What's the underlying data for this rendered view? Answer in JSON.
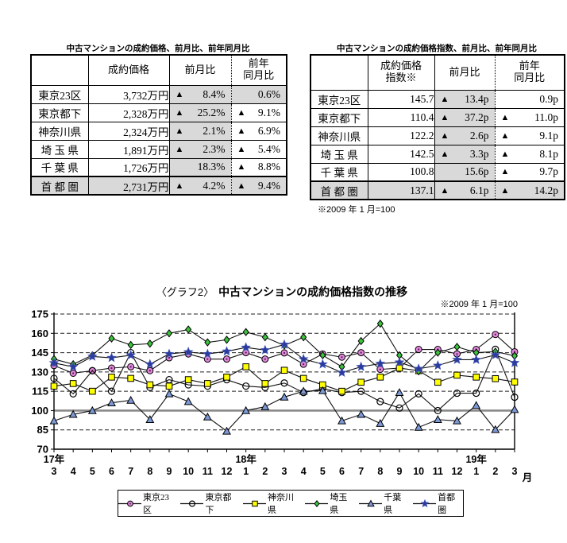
{
  "tables": {
    "price": {
      "title": "中古マンションの成約価格、前月比、前年同月比",
      "headers": [
        "",
        "成約価格",
        "前月比",
        "前年\n同月比"
      ],
      "rows": [
        {
          "label": "東京23区",
          "label_shaded": false,
          "v1": "3,732万円",
          "v1_shaded": false,
          "v1_bold": false,
          "c2": {
            "tri": true,
            "v": "8.4%",
            "shaded": true,
            "bold": true
          },
          "c3": {
            "tri": false,
            "v": "0.6%",
            "shaded": true,
            "bold": true
          }
        },
        {
          "label": "東京都下",
          "label_shaded": false,
          "v1": "2,328万円",
          "v1_shaded": false,
          "v1_bold": false,
          "c2": {
            "tri": true,
            "v": "25.2%",
            "shaded": true,
            "bold": true
          },
          "c3": {
            "tri": true,
            "v": "9.1%",
            "shaded": false,
            "bold": false
          }
        },
        {
          "label": "神奈川県",
          "label_shaded": false,
          "v1": "2,324万円",
          "v1_shaded": false,
          "v1_bold": false,
          "c2": {
            "tri": true,
            "v": "2.1%",
            "shaded": true,
            "bold": true
          },
          "c3": {
            "tri": true,
            "v": "6.9%",
            "shaded": false,
            "bold": false
          }
        },
        {
          "label": "埼 玉 県",
          "label_shaded": false,
          "v1": "1,891万円",
          "v1_shaded": false,
          "v1_bold": false,
          "c2": {
            "tri": true,
            "v": "2.3%",
            "shaded": true,
            "bold": true
          },
          "c3": {
            "tri": true,
            "v": "5.4%",
            "shaded": false,
            "bold": false
          }
        },
        {
          "label": "千 葉 県",
          "label_shaded": false,
          "v1": "1,726万円",
          "v1_shaded": false,
          "v1_bold": false,
          "c2": {
            "tri": false,
            "v": "18.3%",
            "shaded": true,
            "bold": true
          },
          "c3": {
            "tri": true,
            "v": "8.8%",
            "shaded": false,
            "bold": false
          }
        },
        {
          "label": "首 都 圏",
          "label_shaded": true,
          "v1": "2,731万円",
          "v1_shaded": true,
          "v1_bold": true,
          "last": true,
          "c2": {
            "tri": true,
            "v": "4.2%",
            "shaded": true,
            "bold": true
          },
          "c3": {
            "tri": true,
            "v": "9.4%",
            "shaded": true,
            "bold": true
          }
        }
      ]
    },
    "index": {
      "title": "中古マンションの成約価格指数、前月比、前年同月比",
      "headers": [
        "",
        "成約価格\n指数※",
        "前月比",
        "前年\n同月比"
      ],
      "footnote": "※2009 年 1 月=100",
      "rows": [
        {
          "label": "東京23区",
          "label_shaded": false,
          "v1": "145.7",
          "v1_shaded": false,
          "v1_bold": false,
          "c2": {
            "tri": true,
            "v": "13.4p",
            "shaded": true,
            "bold": true
          },
          "c3": {
            "tri": false,
            "v": "0.9p",
            "shaded": false,
            "bold": false
          }
        },
        {
          "label": "東京都下",
          "label_shaded": false,
          "v1": "110.4",
          "v1_shaded": false,
          "v1_bold": false,
          "c2": {
            "tri": true,
            "v": "37.2p",
            "shaded": true,
            "bold": true
          },
          "c3": {
            "tri": true,
            "v": "11.0p",
            "shaded": false,
            "bold": false
          }
        },
        {
          "label": "神奈川県",
          "label_shaded": false,
          "v1": "122.2",
          "v1_shaded": false,
          "v1_bold": false,
          "c2": {
            "tri": true,
            "v": "2.6p",
            "shaded": true,
            "bold": true
          },
          "c3": {
            "tri": true,
            "v": "9.1p",
            "shaded": false,
            "bold": false
          }
        },
        {
          "label": "埼 玉 県",
          "label_shaded": false,
          "v1": "142.5",
          "v1_shaded": false,
          "v1_bold": false,
          "c2": {
            "tri": true,
            "v": "3.3p",
            "shaded": true,
            "bold": true
          },
          "c3": {
            "tri": true,
            "v": "8.1p",
            "shaded": false,
            "bold": false
          }
        },
        {
          "label": "千 葉 県",
          "label_shaded": false,
          "v1": "100.8",
          "v1_shaded": false,
          "v1_bold": false,
          "c2": {
            "tri": false,
            "v": "15.6p",
            "shaded": true,
            "bold": true
          },
          "c3": {
            "tri": true,
            "v": "9.7p",
            "shaded": false,
            "bold": false
          }
        },
        {
          "label": "首 都 圏",
          "label_shaded": true,
          "v1": "137.1",
          "v1_shaded": true,
          "v1_bold": true,
          "last": true,
          "c2": {
            "tri": true,
            "v": "6.1p",
            "shaded": true,
            "bold": true
          },
          "c3": {
            "tri": true,
            "v": "14.2p",
            "shaded": true,
            "bold": true
          }
        }
      ]
    }
  },
  "chart_data": {
    "type": "line",
    "title_prefix": "〈グラフ2〉",
    "title": "中古マンションの成約価格指数の推移",
    "note": "※2009 年 1 月=100",
    "ylim": [
      70,
      175
    ],
    "yticks": [
      175,
      160,
      145,
      130,
      115,
      100,
      85,
      70
    ],
    "baseline": 100,
    "grid": "dashed horizontal",
    "legend_position": "bottom",
    "x_labels": [
      "3",
      "4",
      "5",
      "6",
      "7",
      "8",
      "9",
      "10",
      "11",
      "12",
      "1",
      "2",
      "3",
      "4",
      "5",
      "6",
      "7",
      "8",
      "9",
      "10",
      "11",
      "12",
      "1",
      "2",
      "3"
    ],
    "year_labels": [
      {
        "text": "17年",
        "index": 0
      },
      {
        "text": "18年",
        "index": 10
      },
      {
        "text": "19年",
        "index": 22
      }
    ],
    "x_unit": "月",
    "series": [
      {
        "key": "tokyo23",
        "name": "東京23区",
        "marker": "dot-circle",
        "color": "#e387dd",
        "values": [
          135,
          129,
          131,
          133,
          134,
          131,
          141,
          144,
          140,
          140,
          145,
          140,
          144.8,
          136,
          144,
          141.5,
          145,
          132,
          133,
          147.5,
          147.5,
          144,
          147.5,
          159.1,
          145.7
        ]
      },
      {
        "key": "tama",
        "name": "東京都下",
        "marker": "open-circle",
        "color": "#ffffff",
        "values": [
          125,
          113,
          131,
          115,
          145,
          118,
          124,
          120,
          119,
          124,
          119,
          118,
          121.4,
          114,
          117,
          114,
          115,
          107,
          102,
          113,
          100,
          113.5,
          113.5,
          147.6,
          110.4
        ]
      },
      {
        "key": "kanagawa",
        "name": "神奈川県",
        "marker": "square",
        "color": "#ffff00",
        "values": [
          119,
          121,
          115,
          126,
          125,
          120,
          119,
          124,
          121,
          126,
          134,
          121,
          131.3,
          125,
          120,
          115,
          122,
          126,
          133,
          131,
          122,
          127.5,
          126,
          124.8,
          122.2
        ]
      },
      {
        "key": "saitama",
        "name": "埼玉県",
        "marker": "diamond",
        "color": "#3cc43c",
        "values": [
          140,
          136,
          143,
          156,
          151,
          152,
          160,
          163,
          153,
          155,
          161,
          157,
          150.6,
          157,
          143,
          134,
          154,
          167.5,
          143,
          130.5,
          145,
          149.5,
          145,
          145.8,
          142.5
        ]
      },
      {
        "key": "chiba",
        "name": "千葉県",
        "marker": "triangle",
        "color": "#7d99d6",
        "values": [
          92,
          97,
          100,
          106,
          108,
          93,
          113,
          107,
          95,
          84,
          100,
          103,
          110.5,
          115,
          115.5,
          92,
          97,
          90,
          114,
          87,
          93,
          92,
          104,
          85.2,
          100.8
        ]
      },
      {
        "key": "shutoken",
        "name": "首都圏",
        "marker": "star",
        "color": "#2b3a9d",
        "halo": "#9fb4e2",
        "values": [
          137,
          134,
          142,
          141,
          143,
          136,
          144,
          145.5,
          144,
          146,
          149,
          147,
          151.3,
          140,
          136,
          129.5,
          134,
          136.5,
          137.5,
          132.5,
          135,
          139.5,
          139.5,
          143.2,
          137.1
        ]
      }
    ]
  }
}
